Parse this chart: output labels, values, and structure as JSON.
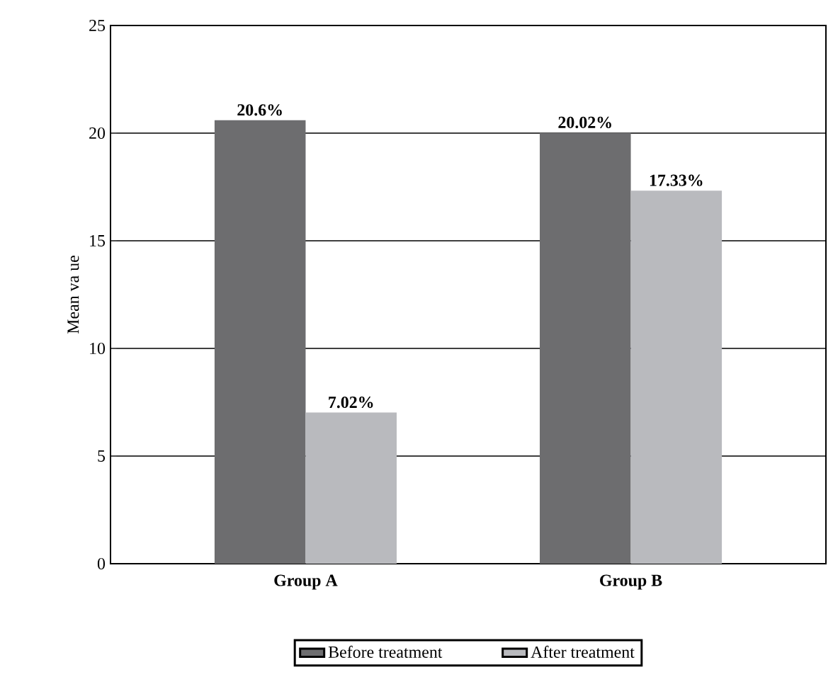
{
  "chart_data": {
    "type": "bar",
    "ylabel": "Mean va ue",
    "categories": [
      "Group A",
      "Group B"
    ],
    "series": [
      {
        "name": "Before treatment",
        "color": "#6d6d6f",
        "values": [
          20.6,
          20.02
        ],
        "value_labels": [
          "20.6%",
          "20.02%"
        ]
      },
      {
        "name": "After treatment",
        "color": "#b9babe",
        "values": [
          7.02,
          17.33
        ],
        "value_labels": [
          "7.02%",
          "17.33%"
        ]
      }
    ],
    "ylim": [
      0,
      25
    ],
    "yticks": [
      0,
      5,
      10,
      15,
      20,
      25
    ],
    "grid": "y",
    "legend": "bottom"
  }
}
